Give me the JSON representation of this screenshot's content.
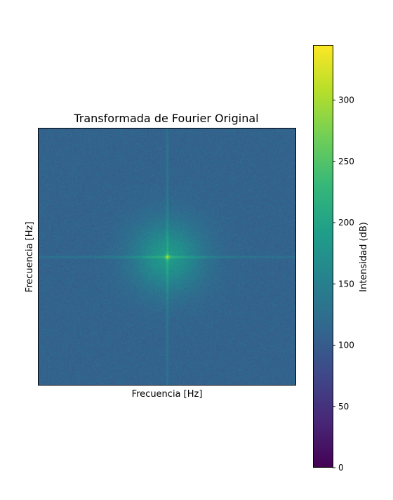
{
  "chart_data": {
    "type": "heatmap",
    "title": "Transformada de Fourier Original",
    "xlabel": "Frecuencia [Hz]",
    "ylabel": "Frecuencia [Hz]",
    "x_ticks": [],
    "y_ticks": [],
    "grid": false,
    "colormap": "viridis",
    "colorbar": {
      "label": "Intensidad (dB)",
      "range": [
        0,
        345
      ],
      "ticks": [
        0,
        50,
        100,
        150,
        200,
        250,
        300
      ],
      "tick_labels": [
        "0",
        "50",
        "100",
        "150",
        "200",
        "250",
        "300"
      ]
    },
    "image_description": {
      "background_level": 110,
      "center_peak_level": 240,
      "glow_level": 185,
      "cross_lines_level": 175,
      "noise_amplitude": 12
    },
    "colors": {
      "viridis_stops": [
        "#440154",
        "#482878",
        "#3e4989",
        "#31688e",
        "#26828e",
        "#1f9e89",
        "#35b779",
        "#6ece58",
        "#b5de2b",
        "#fde725"
      ]
    }
  }
}
